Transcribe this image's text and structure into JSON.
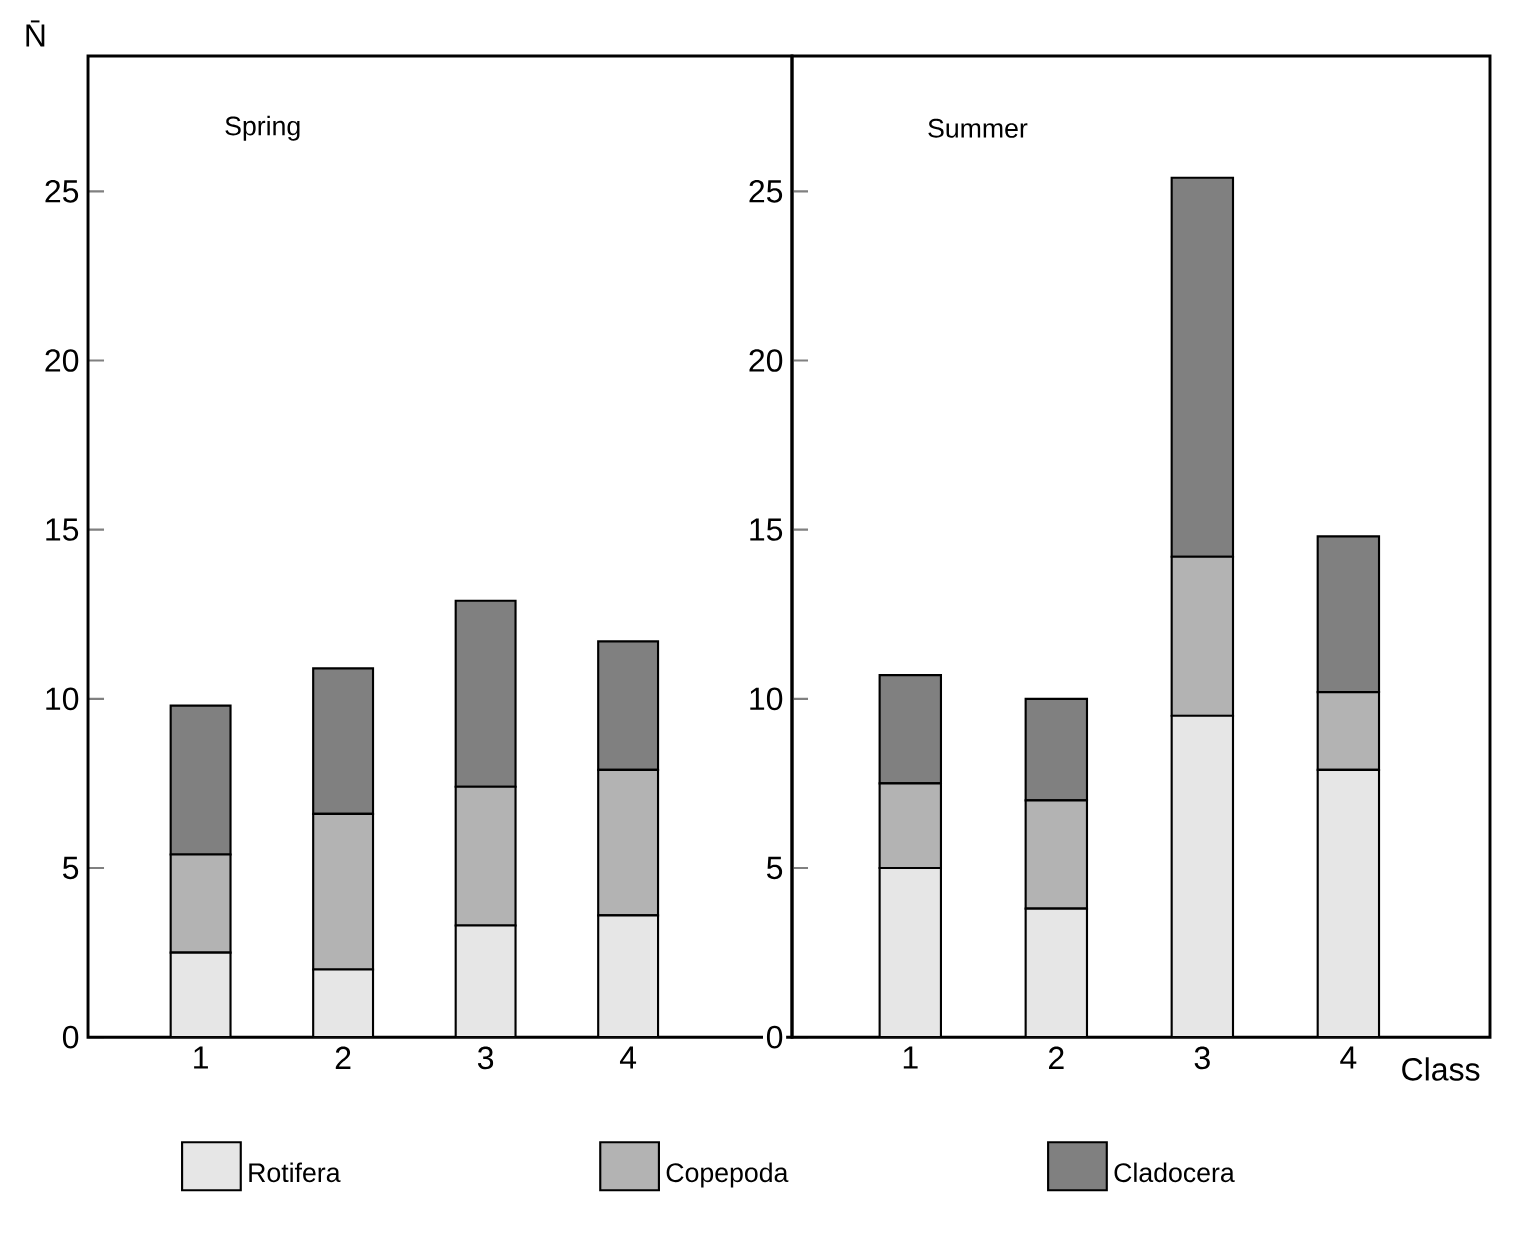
{
  "chart_data": [
    {
      "type": "bar",
      "stacked": true,
      "title": "Spring",
      "ylabel": "N̄",
      "categories": [
        "1",
        "2",
        "3",
        "4"
      ],
      "ylim": [
        0,
        29
      ],
      "yticks": [
        0,
        5,
        10,
        15,
        20,
        25
      ],
      "legend": "bottom",
      "series": [
        {
          "name": "Rotifera",
          "color": "#e6e6e6",
          "values": [
            2.5,
            2.0,
            3.3,
            3.6
          ]
        },
        {
          "name": "Copepoda",
          "color": "#b3b3b3",
          "values": [
            2.9,
            4.6,
            4.1,
            4.3
          ]
        },
        {
          "name": "Cladocera",
          "color": "#808080",
          "values": [
            4.4,
            4.3,
            5.5,
            3.8
          ]
        }
      ]
    },
    {
      "type": "bar",
      "stacked": true,
      "title": "Summer",
      "xlabel": "Class",
      "categories": [
        "1",
        "2",
        "3",
        "4"
      ],
      "ylim": [
        0,
        29
      ],
      "yticks": [
        0,
        5,
        10,
        15,
        20,
        25
      ],
      "series": [
        {
          "color": "#e6e6e6",
          "values": [
            5.0,
            3.8,
            9.5,
            7.9
          ]
        },
        {
          "color": "#b3b3b3",
          "values": [
            2.5,
            3.2,
            4.7,
            2.3
          ]
        },
        {
          "color": "#808080",
          "values": [
            3.2,
            3.0,
            11.2,
            4.6
          ]
        }
      ]
    }
  ]
}
